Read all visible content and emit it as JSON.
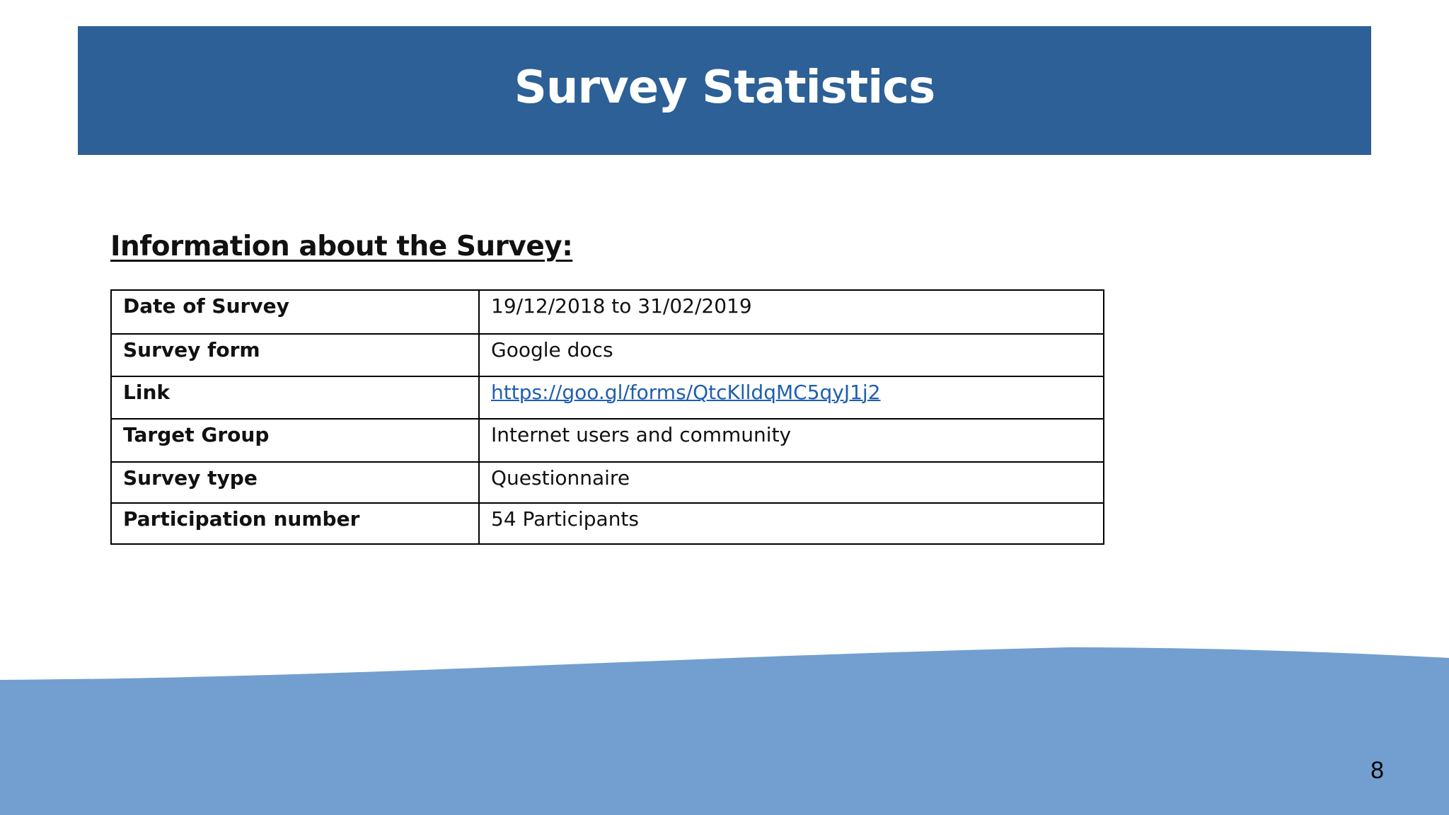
{
  "slide": {
    "title": "Survey Statistics",
    "section_heading": "Information about the Survey:",
    "page_number": "8",
    "colors": {
      "banner": "#2c6096",
      "wave": "#729fcf",
      "link": "#1f5fb0"
    }
  },
  "table": {
    "rows": [
      {
        "label": "Date of Survey",
        "value": "19/12/2018 to 31/02/2019"
      },
      {
        "label": "Survey form",
        "value": "Google docs"
      },
      {
        "label": "Link",
        "value": "https://goo.gl/forms/QtcKlldqMC5qyJ1j2"
      },
      {
        "label": "Target Group",
        "value": "Internet users and community"
      },
      {
        "label": "Survey type",
        "value": "Questionnaire"
      },
      {
        "label": "Participation number",
        "value": "54 Participants"
      }
    ]
  }
}
